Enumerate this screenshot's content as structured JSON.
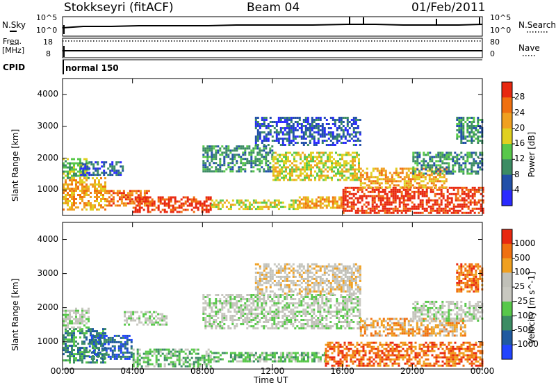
{
  "header": {
    "station": "Stokkseyri (fitACF)",
    "beam": "Beam 04",
    "date": "01/Feb/2011"
  },
  "sky_panel": {
    "left_label": "N.Sky",
    "right_label": "N.Search",
    "left_ticks": [
      "10^5",
      "10^0"
    ],
    "right_ticks": [
      "10^5",
      "10^0"
    ]
  },
  "freq_panel": {
    "left_label_1": "Freq.",
    "left_label_2": "[MHz]",
    "right_label": "Nave",
    "left_ticks": [
      "18",
      "8"
    ],
    "right_ticks": [
      "80",
      "0"
    ]
  },
  "cpid": {
    "label": "CPID",
    "value": "normal 150"
  },
  "colors": {
    "power": [
      "#2a2aff",
      "#2250a8",
      "#3c8c64",
      "#58c84a",
      "#e0d020",
      "#f0a020",
      "#f07010",
      "#e82810"
    ],
    "velocity": [
      "#2244ff",
      "#205aa0",
      "#3c8c64",
      "#58c84a",
      "#c8c8c0",
      "#c0c0b8",
      "#f0a020",
      "#f07010",
      "#e82810"
    ]
  },
  "chart_data": [
    {
      "type": "heatmap",
      "title": "Power",
      "ylabel": "Slant Range [km]",
      "ylim": [
        200,
        4500
      ],
      "yticks": [
        "1000",
        "2000",
        "3000",
        "4000"
      ],
      "xlim": [
        0,
        24
      ],
      "colorbar_label": "Power [dB]",
      "colorbar_ticks": [
        "28",
        "24",
        "20",
        "16",
        "12",
        "8",
        "4"
      ],
      "bands": [
        {
          "t0": 0.0,
          "t1": 2.5,
          "r0": 400,
          "r1": 1400,
          "level": 5
        },
        {
          "t0": 0.0,
          "t1": 1.5,
          "r0": 1400,
          "r1": 2000,
          "level": 3
        },
        {
          "t0": 1.0,
          "t1": 3.5,
          "r0": 1500,
          "r1": 1900,
          "level": 1
        },
        {
          "t0": 2.5,
          "t1": 5.0,
          "r0": 500,
          "r1": 1000,
          "level": 6
        },
        {
          "t0": 4.0,
          "t1": 8.5,
          "r0": 300,
          "r1": 800,
          "level": 7
        },
        {
          "t0": 8.5,
          "t1": 13.5,
          "r0": 400,
          "r1": 700,
          "level": 4
        },
        {
          "t0": 13.5,
          "t1": 16.0,
          "r0": 450,
          "r1": 800,
          "level": 5
        },
        {
          "t0": 8.0,
          "t1": 12.0,
          "r0": 1600,
          "r1": 2400,
          "level": 2
        },
        {
          "t0": 12.0,
          "t1": 17.0,
          "r0": 1300,
          "r1": 2200,
          "level": 4
        },
        {
          "t0": 11.0,
          "t1": 17.0,
          "r0": 2400,
          "r1": 3300,
          "level": 1
        },
        {
          "t0": 16.0,
          "t1": 24.0,
          "r0": 300,
          "r1": 1100,
          "level": 7
        },
        {
          "t0": 17.0,
          "t1": 22.0,
          "r0": 1100,
          "r1": 1700,
          "level": 5
        },
        {
          "t0": 20.0,
          "t1": 24.0,
          "r0": 1500,
          "r1": 2200,
          "level": 2
        },
        {
          "t0": 22.5,
          "t1": 24.0,
          "r0": 2500,
          "r1": 3300,
          "level": 2
        }
      ]
    },
    {
      "type": "heatmap",
      "title": "Velocity",
      "ylabel": "Slant Range [km]",
      "xlabel": "Time UT",
      "ylim": [
        200,
        4500
      ],
      "yticks": [
        "1000",
        "2000",
        "3000",
        "4000"
      ],
      "xlim": [
        0,
        24
      ],
      "xticks": [
        "00:00",
        "04:00",
        "08:00",
        "12:00",
        "16:00",
        "20:00",
        "00:00"
      ],
      "colorbar_label": "Velocity [m s^-1]",
      "colorbar_ticks": [
        "1000",
        "500",
        "100",
        "25",
        "-25",
        "-100",
        "-500",
        "-1000"
      ],
      "bands": [
        {
          "t0": 0.0,
          "t1": 2.5,
          "r0": 400,
          "r1": 1400,
          "level": 2
        },
        {
          "t0": 0.0,
          "t1": 1.5,
          "r0": 1400,
          "r1": 2000,
          "level": 4
        },
        {
          "t0": 1.5,
          "t1": 4.0,
          "r0": 500,
          "r1": 1200,
          "level": 1
        },
        {
          "t0": 4.0,
          "t1": 8.5,
          "r0": 300,
          "r1": 800,
          "level": 3
        },
        {
          "t0": 3.5,
          "t1": 6.0,
          "r0": 1500,
          "r1": 1900,
          "level": 4
        },
        {
          "t0": 8.5,
          "t1": 15.0,
          "r0": 400,
          "r1": 700,
          "level": 3
        },
        {
          "t0": 8.0,
          "t1": 17.0,
          "r0": 1400,
          "r1": 2400,
          "level": 4
        },
        {
          "t0": 11.0,
          "t1": 17.0,
          "r0": 2400,
          "r1": 3300,
          "level": 5
        },
        {
          "t0": 15.0,
          "t1": 24.0,
          "r0": 300,
          "r1": 1000,
          "level": 7
        },
        {
          "t0": 17.0,
          "t1": 23.0,
          "r0": 1200,
          "r1": 1700,
          "level": 6
        },
        {
          "t0": 20.0,
          "t1": 24.0,
          "r0": 1600,
          "r1": 2200,
          "level": 4
        },
        {
          "t0": 22.5,
          "t1": 24.0,
          "r0": 2500,
          "r1": 3300,
          "level": 7
        }
      ]
    }
  ]
}
